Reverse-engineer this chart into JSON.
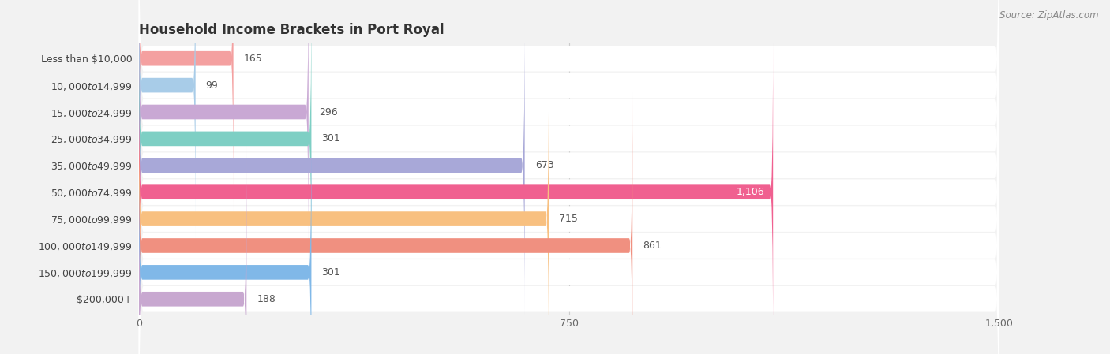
{
  "title": "Household Income Brackets in Port Royal",
  "source": "Source: ZipAtlas.com",
  "categories": [
    "Less than $10,000",
    "$10,000 to $14,999",
    "$15,000 to $24,999",
    "$25,000 to $34,999",
    "$35,000 to $49,999",
    "$50,000 to $74,999",
    "$75,000 to $99,999",
    "$100,000 to $149,999",
    "$150,000 to $199,999",
    "$200,000+"
  ],
  "values": [
    165,
    99,
    296,
    301,
    673,
    1106,
    715,
    861,
    301,
    188
  ],
  "colors": [
    "#f4a0a0",
    "#a8cce8",
    "#c9a8d4",
    "#7ecfc4",
    "#a8a8d8",
    "#f06090",
    "#f8c080",
    "#f09080",
    "#80b8e8",
    "#c8a8d0"
  ],
  "xlim": [
    0,
    1500
  ],
  "xticks": [
    0,
    750,
    1500
  ],
  "bar_height": 0.55,
  "figsize": [
    14.06,
    4.49
  ],
  "dpi": 100,
  "background_color": "#f2f2f2",
  "row_bg_color": "#ffffff",
  "label_color_default": "#555555",
  "label_color_inside": "#ffffff",
  "inside_label_threshold": 1050
}
